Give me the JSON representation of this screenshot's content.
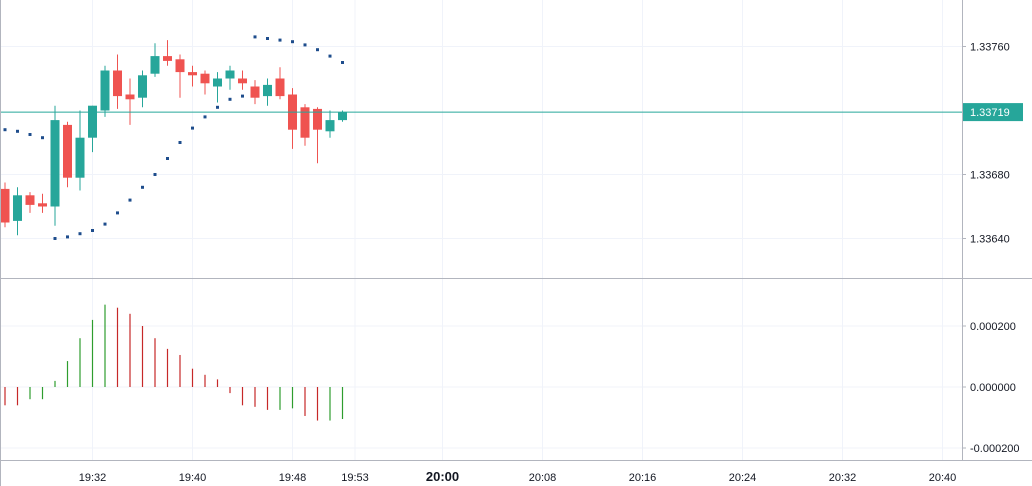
{
  "colors": {
    "up": "#26a69a",
    "down": "#ef5350",
    "psar": "#1e4d8c",
    "hist_up": "#2e9d2e",
    "hist_down": "#c62828",
    "grid": "#f0f3fa",
    "axis_line": "#b2b5be",
    "price_line": "#26a69a",
    "text": "#131722"
  },
  "chart_data": [
    {
      "type": "candlestick",
      "title": "",
      "xlabel": "",
      "ylabel": "",
      "ylim": [
        1.3362,
        1.3378
      ],
      "y_ticks": [
        "1.33760",
        "1.33680",
        "1.33640"
      ],
      "y_tick_values": [
        1.3376,
        1.3368,
        1.3364
      ],
      "last_price": 1.33719,
      "last_price_label": "1.33719",
      "x_ticks": [
        "19:32",
        "19:40",
        "19:48",
        "19:53",
        "20:00",
        "20:08",
        "20:16",
        "20:24",
        "20:32",
        "20:40"
      ],
      "x_tick_bold": [
        "20:00"
      ],
      "candles": [
        {
          "t": "19:25",
          "o": 1.33671,
          "h": 1.33675,
          "l": 1.33647,
          "c": 1.3365
        },
        {
          "t": "19:26",
          "o": 1.33651,
          "h": 1.33672,
          "l": 1.33642,
          "c": 1.33667
        },
        {
          "t": "19:27",
          "o": 1.33667,
          "h": 1.33669,
          "l": 1.33656,
          "c": 1.33661
        },
        {
          "t": "19:28",
          "o": 1.33662,
          "h": 1.33668,
          "l": 1.33656,
          "c": 1.3366
        },
        {
          "t": "19:29",
          "o": 1.3366,
          "h": 1.33723,
          "l": 1.33648,
          "c": 1.33714
        },
        {
          "t": "19:30",
          "o": 1.33711,
          "h": 1.33713,
          "l": 1.33672,
          "c": 1.33678
        },
        {
          "t": "19:31",
          "o": 1.33678,
          "h": 1.3372,
          "l": 1.3367,
          "c": 1.33703
        },
        {
          "t": "19:32",
          "o": 1.33703,
          "h": 1.33723,
          "l": 1.33694,
          "c": 1.33723
        },
        {
          "t": "19:33",
          "o": 1.3372,
          "h": 1.33748,
          "l": 1.33716,
          "c": 1.33745
        },
        {
          "t": "19:34",
          "o": 1.33745,
          "h": 1.33755,
          "l": 1.33721,
          "c": 1.33729
        },
        {
          "t": "19:35",
          "o": 1.3373,
          "h": 1.3374,
          "l": 1.33711,
          "c": 1.33727
        },
        {
          "t": "19:36",
          "o": 1.33728,
          "h": 1.33745,
          "l": 1.33722,
          "c": 1.33742
        },
        {
          "t": "19:37",
          "o": 1.33743,
          "h": 1.33762,
          "l": 1.33741,
          "c": 1.33754
        },
        {
          "t": "19:38",
          "o": 1.33754,
          "h": 1.33764,
          "l": 1.33748,
          "c": 1.33751
        },
        {
          "t": "19:39",
          "o": 1.33752,
          "h": 1.33755,
          "l": 1.33728,
          "c": 1.33744
        },
        {
          "t": "19:40",
          "o": 1.33744,
          "h": 1.33748,
          "l": 1.33735,
          "c": 1.33742
        },
        {
          "t": "19:41",
          "o": 1.33743,
          "h": 1.33745,
          "l": 1.3373,
          "c": 1.33737
        },
        {
          "t": "19:42",
          "o": 1.33735,
          "h": 1.33744,
          "l": 1.33725,
          "c": 1.3374
        },
        {
          "t": "19:43",
          "o": 1.3374,
          "h": 1.33748,
          "l": 1.33733,
          "c": 1.33745
        },
        {
          "t": "19:44",
          "o": 1.3374,
          "h": 1.33745,
          "l": 1.33733,
          "c": 1.33737
        },
        {
          "t": "19:45",
          "o": 1.33735,
          "h": 1.33739,
          "l": 1.33724,
          "c": 1.33728
        },
        {
          "t": "19:46",
          "o": 1.33729,
          "h": 1.3374,
          "l": 1.33723,
          "c": 1.33736
        },
        {
          "t": "19:47",
          "o": 1.3374,
          "h": 1.33747,
          "l": 1.33727,
          "c": 1.33729
        },
        {
          "t": "19:48",
          "o": 1.3373,
          "h": 1.33734,
          "l": 1.33696,
          "c": 1.33708
        },
        {
          "t": "19:49",
          "o": 1.33722,
          "h": 1.33724,
          "l": 1.33698,
          "c": 1.33703
        },
        {
          "t": "19:50",
          "o": 1.33721,
          "h": 1.33722,
          "l": 1.33687,
          "c": 1.33708
        },
        {
          "t": "19:51",
          "o": 1.33707,
          "h": 1.3372,
          "l": 1.33703,
          "c": 1.33714
        },
        {
          "t": "19:52",
          "o": 1.33714,
          "h": 1.3372,
          "l": 1.33713,
          "c": 1.33719
        }
      ],
      "psar": [
        {
          "t": "19:25",
          "v": 1.33708
        },
        {
          "t": "19:26",
          "v": 1.33707
        },
        {
          "t": "19:27",
          "v": 1.33705
        },
        {
          "t": "19:28",
          "v": 1.33703
        },
        {
          "t": "19:29",
          "v": 1.3364
        },
        {
          "t": "19:30",
          "v": 1.33641
        },
        {
          "t": "19:31",
          "v": 1.33643
        },
        {
          "t": "19:32",
          "v": 1.33645
        },
        {
          "t": "19:33",
          "v": 1.33649
        },
        {
          "t": "19:34",
          "v": 1.33656
        },
        {
          "t": "19:35",
          "v": 1.33664
        },
        {
          "t": "19:36",
          "v": 1.33672
        },
        {
          "t": "19:37",
          "v": 1.3368
        },
        {
          "t": "19:38",
          "v": 1.3369
        },
        {
          "t": "19:39",
          "v": 1.337
        },
        {
          "t": "19:40",
          "v": 1.33709
        },
        {
          "t": "19:41",
          "v": 1.33716
        },
        {
          "t": "19:42",
          "v": 1.33722
        },
        {
          "t": "19:43",
          "v": 1.33727
        },
        {
          "t": "19:44",
          "v": 1.33729
        },
        {
          "t": "19:45",
          "v": 1.33766
        },
        {
          "t": "19:46",
          "v": 1.33765
        },
        {
          "t": "19:47",
          "v": 1.33764
        },
        {
          "t": "19:48",
          "v": 1.33763
        },
        {
          "t": "19:49",
          "v": 1.33761
        },
        {
          "t": "19:50",
          "v": 1.33758
        },
        {
          "t": "19:51",
          "v": 1.33754
        },
        {
          "t": "19:52",
          "v": 1.3375
        }
      ]
    },
    {
      "type": "bar",
      "title": "",
      "xlabel": "",
      "ylabel": "",
      "ylim": [
        -0.00025,
        0.00032
      ],
      "y_ticks": [
        "0.000200",
        "0.000000",
        "-0.000200"
      ],
      "y_tick_values": [
        0.0002,
        0.0,
        -0.0002
      ],
      "categories": [
        "19:25",
        "19:26",
        "19:27",
        "19:28",
        "19:29",
        "19:30",
        "19:31",
        "19:32",
        "19:33",
        "19:34",
        "19:35",
        "19:36",
        "19:37",
        "19:38",
        "19:39",
        "19:40",
        "19:41",
        "19:42",
        "19:43",
        "19:44",
        "19:45",
        "19:46",
        "19:47",
        "19:48",
        "19:49",
        "19:50",
        "19:51",
        "19:52"
      ],
      "values": [
        -6e-05,
        -6e-05,
        -4e-05,
        -4e-05,
        2e-05,
        8.5e-05,
        0.00016,
        0.00022,
        0.00027,
        0.00026,
        0.00024,
        0.0002,
        0.00016,
        0.000125,
        0.000105,
        6e-05,
        4e-05,
        2.5e-05,
        -2e-05,
        -6e-05,
        -6.5e-05,
        -7.5e-05,
        -7.5e-05,
        -7e-05,
        -9.5e-05,
        -0.00011,
        -0.00011,
        -0.000105
      ],
      "colors": [
        "down",
        "down",
        "up",
        "up",
        "up",
        "up",
        "up",
        "up",
        "up",
        "down",
        "down",
        "down",
        "down",
        "down",
        "down",
        "down",
        "down",
        "down",
        "down",
        "down",
        "down",
        "down",
        "up",
        "up",
        "down",
        "down",
        "up",
        "up"
      ]
    }
  ]
}
